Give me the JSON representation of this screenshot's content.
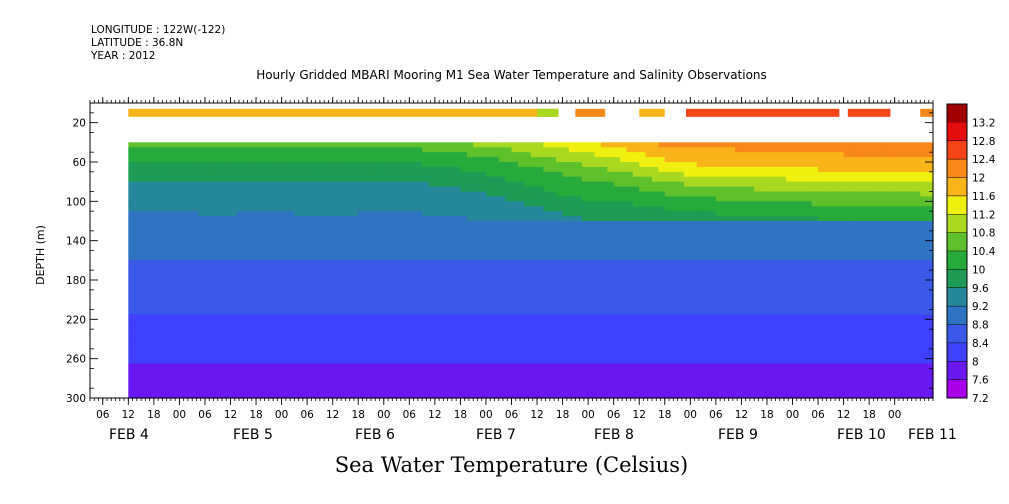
{
  "header": {
    "longitude": "LONGITUDE : 122W(-122)",
    "latitude": "LATITUDE : 36.8N",
    "year": "YEAR : 2012"
  },
  "chart_data": {
    "type": "heatmap",
    "title": "Hourly Gridded MBARI Mooring M1 Sea Water Temperature and Salinity Observations",
    "xlabel": "Sea Water Temperature (Celsius)",
    "ylabel": "DEPTH (m)",
    "x_range_hours": [
      0,
      198
    ],
    "ylim": [
      300,
      0
    ],
    "y_ticks": [
      20,
      60,
      100,
      140,
      180,
      220,
      260,
      300
    ],
    "x_hour_ticks": [
      "06",
      "12",
      "18",
      "00",
      "06",
      "12",
      "18",
      "00",
      "06",
      "12",
      "18",
      "00",
      "06",
      "12",
      "18",
      "00",
      "06",
      "12",
      "18",
      "00",
      "06",
      "12",
      "18",
      "00",
      "06",
      "12",
      "18",
      "00",
      "06",
      "12",
      "18",
      "00"
    ],
    "x_day_labels": [
      "FEB 4",
      "FEB 5",
      "FEB 6",
      "FEB 7",
      "FEB 8",
      "FEB 9",
      "FEB 10",
      "FEB 11"
    ],
    "colorbar": {
      "levels": [
        7.2,
        7.6,
        8,
        8.4,
        8.8,
        9.2,
        9.6,
        10,
        10.4,
        10.8,
        11.2,
        11.6,
        12,
        12.4,
        12.8,
        13.2
      ],
      "colors": [
        "#a800e8",
        "#6a18f0",
        "#4040ff",
        "#3c58e8",
        "#2e74c2",
        "#26889a",
        "#1f9b56",
        "#26aa3c",
        "#5ec02a",
        "#a8d820",
        "#f0f010",
        "#f8b418",
        "#f88818",
        "#f44418",
        "#e40e0e",
        "#a00000"
      ]
    },
    "data_start_hour": 9,
    "surface_depth": 10,
    "surface_segments": [
      {
        "start": 9,
        "end": 110,
        "value": 11.7
      },
      {
        "start": 105,
        "end": 110,
        "value": 11.1
      },
      {
        "start": 114,
        "end": 121,
        "value": 12.1
      },
      {
        "start": 129,
        "end": 135,
        "value": 11.9
      },
      {
        "start": 140,
        "end": 176,
        "value": 12.4
      },
      {
        "start": 178,
        "end": 188,
        "value": 12.6
      },
      {
        "start": 195,
        "end": 198,
        "value": 12.2
      }
    ],
    "upper_profile_depths": [
      40,
      50,
      60,
      70,
      80,
      90,
      100,
      110,
      120
    ],
    "upper_profile": [
      {
        "hour": 9,
        "values": [
          10.5,
          10.2,
          10.0,
          9.8,
          9.55,
          9.4,
          9.3,
          9.2,
          9.1
        ]
      },
      {
        "hour": 20,
        "values": [
          10.5,
          10.2,
          10.0,
          9.8,
          9.6,
          9.4,
          9.3,
          9.2,
          9.1
        ]
      },
      {
        "hour": 30,
        "values": [
          10.6,
          10.3,
          10.05,
          9.85,
          9.65,
          9.45,
          9.35,
          9.25,
          9.15
        ]
      },
      {
        "hour": 40,
        "values": [
          10.5,
          10.2,
          10.0,
          9.8,
          9.55,
          9.4,
          9.3,
          9.2,
          9.1
        ]
      },
      {
        "hour": 55,
        "values": [
          10.6,
          10.3,
          10.05,
          9.85,
          9.6,
          9.45,
          9.35,
          9.25,
          9.15
        ]
      },
      {
        "hour": 70,
        "values": [
          10.5,
          10.2,
          10.0,
          9.8,
          9.55,
          9.4,
          9.3,
          9.2,
          9.1
        ]
      },
      {
        "hour": 85,
        "values": [
          10.8,
          10.4,
          10.1,
          9.9,
          9.7,
          9.5,
          9.35,
          9.25,
          9.15
        ]
      },
      {
        "hour": 95,
        "values": [
          11.0,
          10.6,
          10.3,
          10.1,
          9.9,
          9.7,
          9.5,
          9.35,
          9.2
        ]
      },
      {
        "hour": 105,
        "values": [
          11.2,
          10.9,
          10.6,
          10.3,
          10.1,
          9.9,
          9.7,
          9.5,
          9.3
        ]
      },
      {
        "hour": 112,
        "values": [
          11.5,
          11.1,
          10.8,
          10.5,
          10.3,
          10.1,
          9.9,
          9.7,
          9.5
        ]
      },
      {
        "hour": 120,
        "values": [
          11.7,
          11.3,
          11.0,
          10.7,
          10.4,
          10.2,
          10.0,
          9.8,
          9.6
        ]
      },
      {
        "hour": 128,
        "values": [
          11.9,
          11.6,
          11.2,
          10.9,
          10.6,
          10.3,
          10.05,
          9.85,
          9.65
        ]
      },
      {
        "hour": 136,
        "values": [
          12.1,
          11.9,
          11.6,
          11.2,
          10.8,
          10.5,
          10.2,
          9.95,
          9.7
        ]
      },
      {
        "hour": 144,
        "values": [
          12.1,
          11.9,
          11.7,
          11.4,
          11.0,
          10.6,
          10.3,
          10.05,
          9.8
        ]
      },
      {
        "hour": 154,
        "values": [
          12.2,
          11.95,
          11.7,
          11.4,
          11.05,
          10.7,
          10.4,
          10.1,
          9.85
        ]
      },
      {
        "hour": 164,
        "values": [
          12.2,
          12.0,
          11.8,
          11.5,
          11.1,
          10.75,
          10.45,
          10.15,
          9.9
        ]
      },
      {
        "hour": 174,
        "values": [
          12.25,
          12.05,
          11.8,
          11.55,
          11.2,
          10.8,
          10.5,
          10.2,
          9.95
        ]
      },
      {
        "hour": 184,
        "values": [
          12.3,
          12.1,
          11.85,
          11.6,
          11.25,
          10.85,
          10.5,
          10.2,
          9.95
        ]
      },
      {
        "hour": 198,
        "values": [
          12.3,
          12.1,
          11.9,
          11.6,
          11.3,
          10.9,
          10.55,
          10.2,
          9.95
        ]
      }
    ],
    "lower_profile_depths": [
      120,
      140,
      160,
      180,
      200,
      220,
      240,
      260,
      280,
      300
    ],
    "lower_profile_values": [
      9.1,
      8.95,
      8.8,
      8.65,
      8.5,
      8.35,
      8.2,
      8.05,
      7.8,
      7.6
    ]
  }
}
